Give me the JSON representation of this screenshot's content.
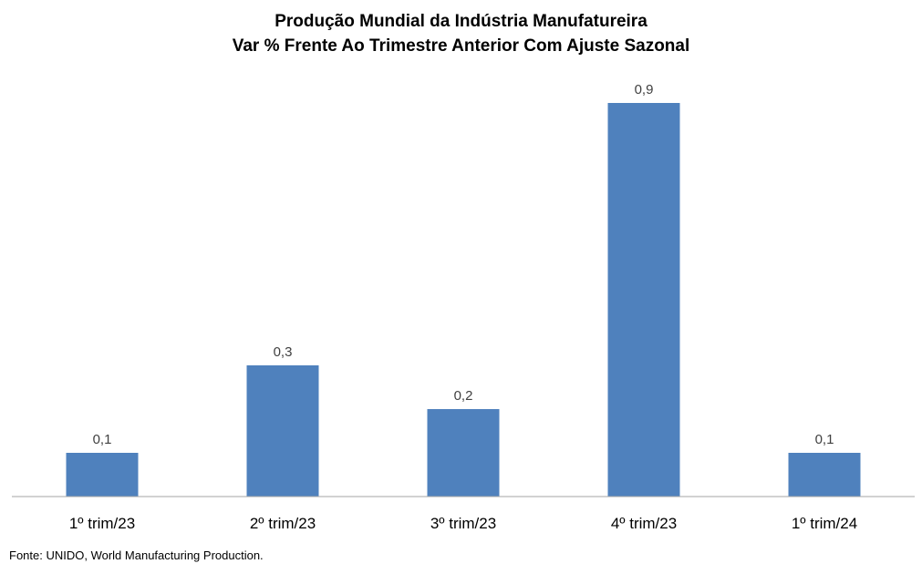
{
  "chart_data": {
    "type": "bar",
    "title": "Produção Mundial da Indústria Manufatureira",
    "subtitle": "Var % Frente Ao Trimestre Anterior Com Ajuste Sazonal",
    "categories": [
      "1º trim/23",
      "2º trim/23",
      "3º trim/23",
      "4º trim/23",
      "1º trim/24"
    ],
    "values": [
      0.1,
      0.3,
      0.2,
      0.9,
      0.1
    ],
    "data_labels": [
      "0,1",
      "0,3",
      "0,2",
      "0,9",
      "0,1"
    ],
    "xlabel": "",
    "ylabel": "",
    "ylim": [
      0,
      1
    ],
    "grid": false,
    "legend": "none",
    "bar_color": "#4F81BD"
  },
  "source": "Fonte: UNIDO, World Manufacturing Production."
}
